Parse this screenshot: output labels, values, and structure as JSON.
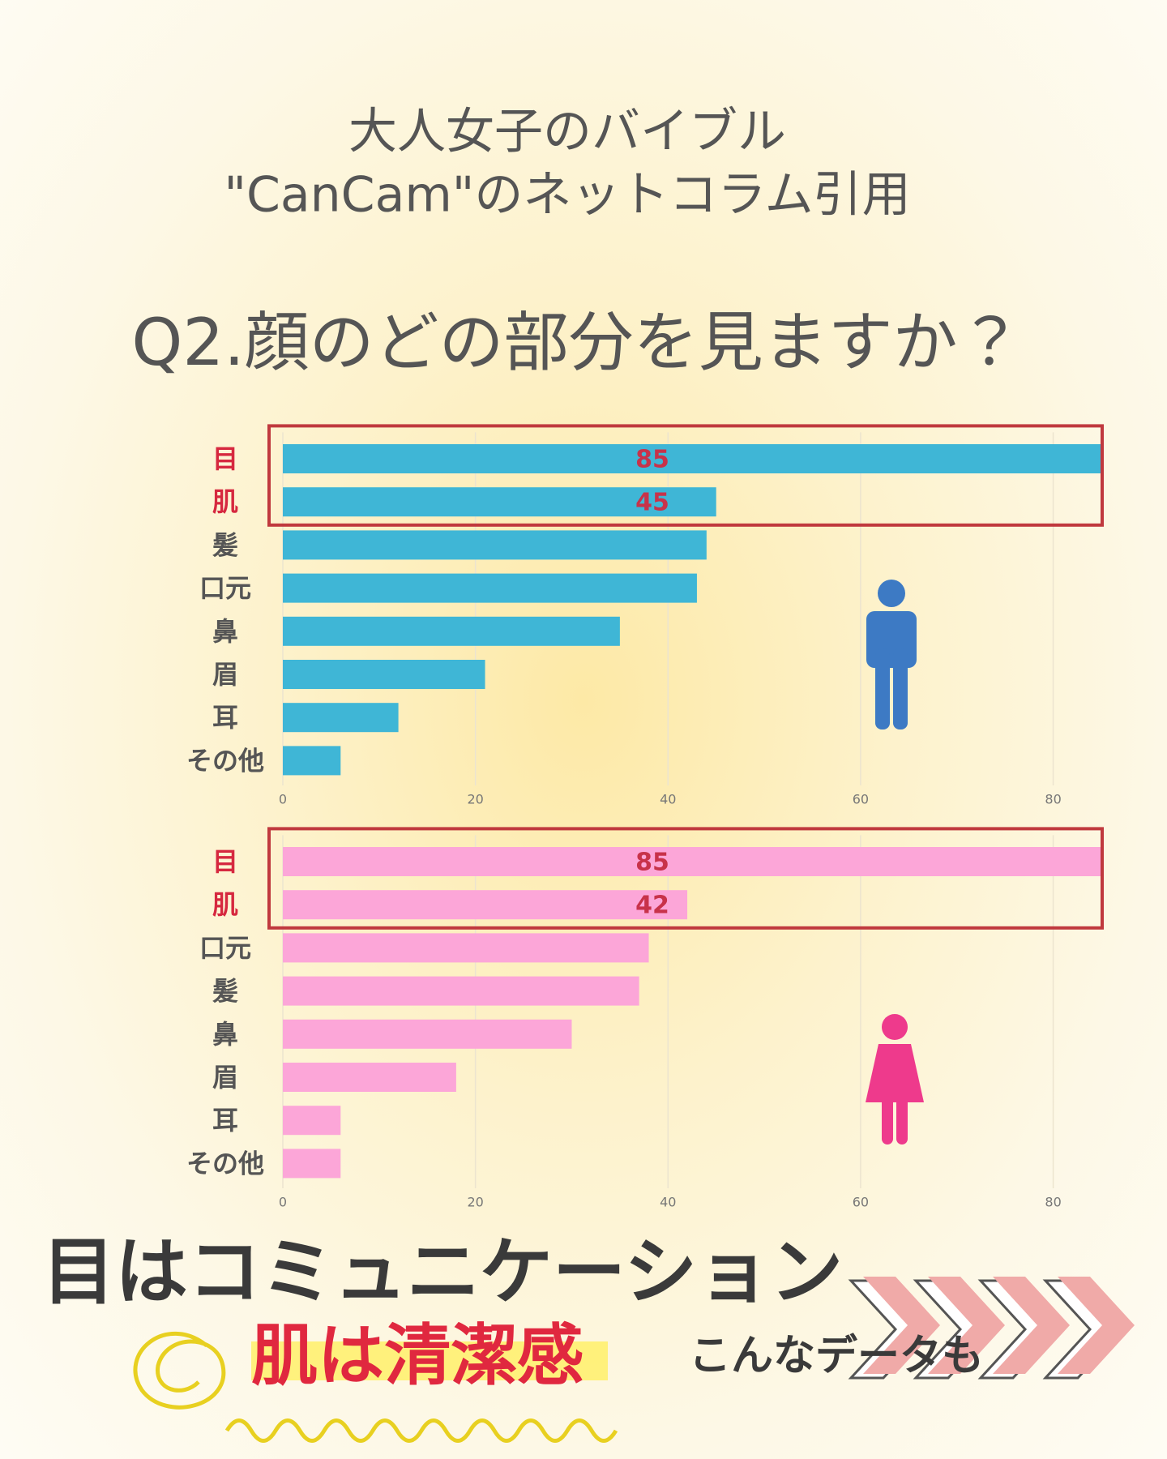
{
  "header": {
    "lines": [
      "大人女子のバイブル",
      "\"CanCam\"のネットコラム引用"
    ],
    "question": "Q2.顔のどの部分を見ますか？"
  },
  "chart_data": [
    {
      "type": "bar",
      "orientation": "horizontal",
      "color": "#3fb6d6",
      "categories": [
        "目",
        "肌",
        "髪",
        "口元",
        "鼻",
        "眉",
        "耳",
        "その他"
      ],
      "values": [
        85,
        45,
        44,
        43,
        35,
        21,
        12,
        6
      ],
      "value_labels": [
        "85",
        "45",
        null,
        null,
        null,
        null,
        null,
        null
      ],
      "xlim": [
        0,
        85
      ],
      "xticks": [
        0,
        20,
        40,
        60,
        80
      ],
      "grid": true
    },
    {
      "type": "bar",
      "orientation": "horizontal",
      "color": "#fca6d8",
      "categories": [
        "目",
        "肌",
        "口元",
        "髪",
        "鼻",
        "眉",
        "耳",
        "その他"
      ],
      "values": [
        85,
        42,
        38,
        37,
        30,
        18,
        6,
        6
      ],
      "value_labels": [
        "85",
        "42",
        null,
        null,
        null,
        null,
        null,
        null
      ],
      "xlim": [
        0,
        85
      ],
      "xticks": [
        0,
        20,
        40,
        60,
        80
      ],
      "grid": true
    }
  ],
  "footer": {
    "line1": "目はコミュニケーション",
    "line2": "肌は清潔感",
    "note": "こんなデータも"
  }
}
